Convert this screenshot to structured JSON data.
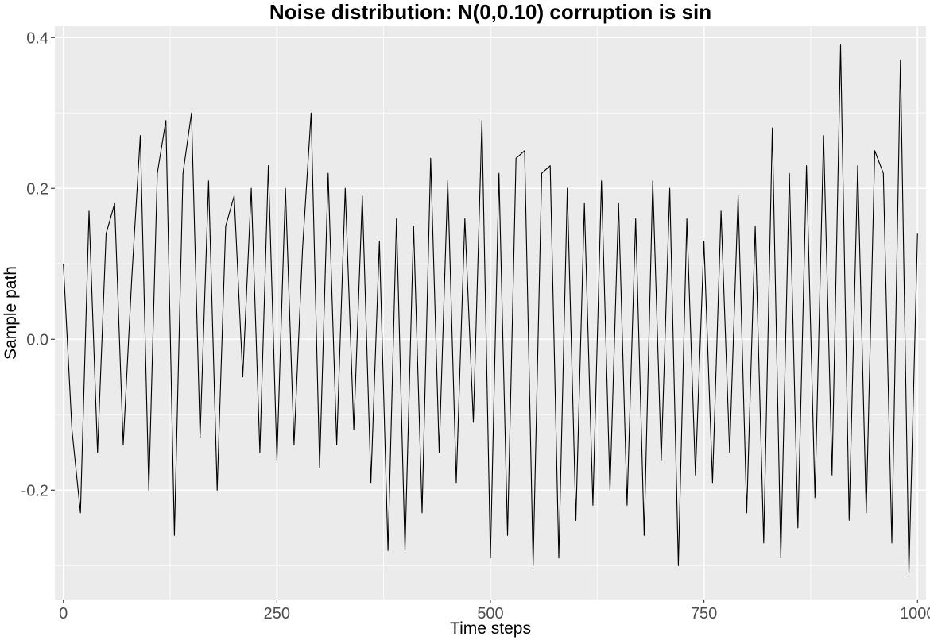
{
  "chart_data": {
    "type": "line",
    "title": "Noise distribution: N(0,0.10) corruption is sin",
    "xlabel": "Time steps",
    "ylabel": "Sample path",
    "xlim": [
      -10,
      1010
    ],
    "ylim": [
      -0.345,
      0.415
    ],
    "x_ticks": [
      0,
      250,
      500,
      750,
      1000
    ],
    "x_tick_labels": [
      "0",
      "250",
      "500",
      "750",
      "1000"
    ],
    "y_ticks": [
      -0.2,
      0.0,
      0.2,
      0.4
    ],
    "y_tick_labels": [
      "-0.2",
      "0.0",
      "0.2",
      "0.4"
    ],
    "grid": true,
    "background": "#EBEBEB",
    "line_color": "#000000",
    "series": [
      {
        "x": [
          0,
          10,
          20,
          30,
          40,
          50,
          60,
          70,
          80,
          90,
          100,
          110,
          120,
          130,
          140,
          150,
          160,
          170,
          180,
          190,
          200,
          210,
          220,
          230,
          240,
          250,
          260,
          270,
          280,
          290,
          300,
          310,
          320,
          330,
          340,
          350,
          360,
          370,
          380,
          390,
          400,
          410,
          420,
          430,
          440,
          450,
          460,
          470,
          480,
          490,
          500,
          510,
          520,
          530,
          540,
          550,
          560,
          570,
          580,
          590,
          600,
          610,
          620,
          630,
          640,
          650,
          660,
          670,
          680,
          690,
          700,
          710,
          720,
          730,
          740,
          750,
          760,
          770,
          780,
          790,
          800,
          810,
          820,
          830,
          840,
          850,
          860,
          870,
          880,
          890,
          900,
          910,
          920,
          930,
          940,
          950,
          960,
          970,
          980,
          990,
          1000
        ],
        "y": [
          0.1,
          -0.12,
          -0.23,
          0.17,
          -0.15,
          0.14,
          0.18,
          -0.14,
          0.08,
          0.27,
          -0.2,
          0.22,
          0.29,
          -0.26,
          0.22,
          0.3,
          -0.13,
          0.21,
          -0.2,
          0.15,
          0.19,
          -0.05,
          0.2,
          -0.15,
          0.23,
          -0.16,
          0.2,
          -0.14,
          0.12,
          0.3,
          -0.17,
          0.22,
          -0.14,
          0.2,
          -0.12,
          0.19,
          -0.19,
          0.13,
          -0.28,
          0.16,
          -0.28,
          0.15,
          -0.23,
          0.24,
          -0.15,
          0.21,
          -0.19,
          0.16,
          -0.11,
          0.29,
          -0.29,
          0.22,
          -0.26,
          0.24,
          0.25,
          -0.3,
          0.22,
          0.23,
          -0.29,
          0.2,
          -0.24,
          0.18,
          -0.22,
          0.21,
          -0.2,
          0.18,
          -0.22,
          0.16,
          -0.26,
          0.21,
          -0.16,
          0.2,
          -0.3,
          0.16,
          -0.18,
          0.13,
          -0.19,
          0.17,
          -0.15,
          0.19,
          -0.23,
          0.15,
          -0.27,
          0.28,
          -0.29,
          0.22,
          -0.25,
          0.23,
          -0.21,
          0.27,
          -0.18,
          0.39,
          -0.24,
          0.23,
          -0.23,
          0.25,
          0.22,
          -0.27,
          0.37,
          -0.31,
          0.14
        ]
      }
    ]
  }
}
